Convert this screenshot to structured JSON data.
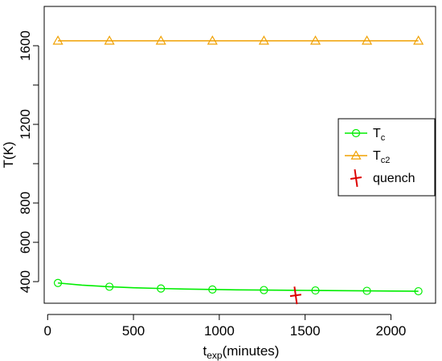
{
  "chart_data": {
    "type": "line",
    "xlabel": {
      "main": "t",
      "sub": "exp",
      "unit": "(minutes)"
    },
    "ylabel": "T(K)",
    "xlim": [
      -20,
      2260
    ],
    "ylim": [
      290,
      1800
    ],
    "xticks": [
      0,
      500,
      1000,
      1500,
      2000
    ],
    "yticks": [
      400,
      600,
      800,
      1200,
      1600
    ],
    "yticks_minor": [
      1000,
      1400
    ],
    "grid": false,
    "legend_position": "right",
    "series": [
      {
        "key": "tc",
        "name": "T",
        "name_sub": "c",
        "color": "#00ee00",
        "marker": "circle",
        "curve_x": [
          60,
          200,
          360,
          500,
          660,
          800,
          960,
          1100,
          1260,
          1400,
          1560,
          1700,
          1860,
          2000,
          2160
        ],
        "curve_y": [
          393,
          382,
          374,
          369,
          365,
          362,
          360,
          358,
          357,
          356,
          355,
          354,
          353,
          352,
          351
        ],
        "marker_x": [
          60,
          360,
          660,
          960,
          1260,
          1560,
          1860,
          2160
        ],
        "marker_y": [
          393,
          374,
          365,
          360,
          357,
          355,
          353,
          351
        ]
      },
      {
        "key": "tc2",
        "name": "T",
        "name_sub": "c2",
        "color": "#f0a000",
        "marker": "triangle",
        "curve_x": [
          60,
          2160
        ],
        "curve_y": [
          1625,
          1625
        ],
        "marker_x": [
          60,
          360,
          660,
          960,
          1260,
          1560,
          1860,
          2160
        ],
        "marker_y": [
          1625,
          1625,
          1625,
          1625,
          1625,
          1625,
          1625,
          1625
        ]
      },
      {
        "key": "quench",
        "name": "quench",
        "color": "#dd0000",
        "marker": "plus",
        "marker_x": [
          1445
        ],
        "marker_y": [
          330
        ]
      }
    ]
  }
}
